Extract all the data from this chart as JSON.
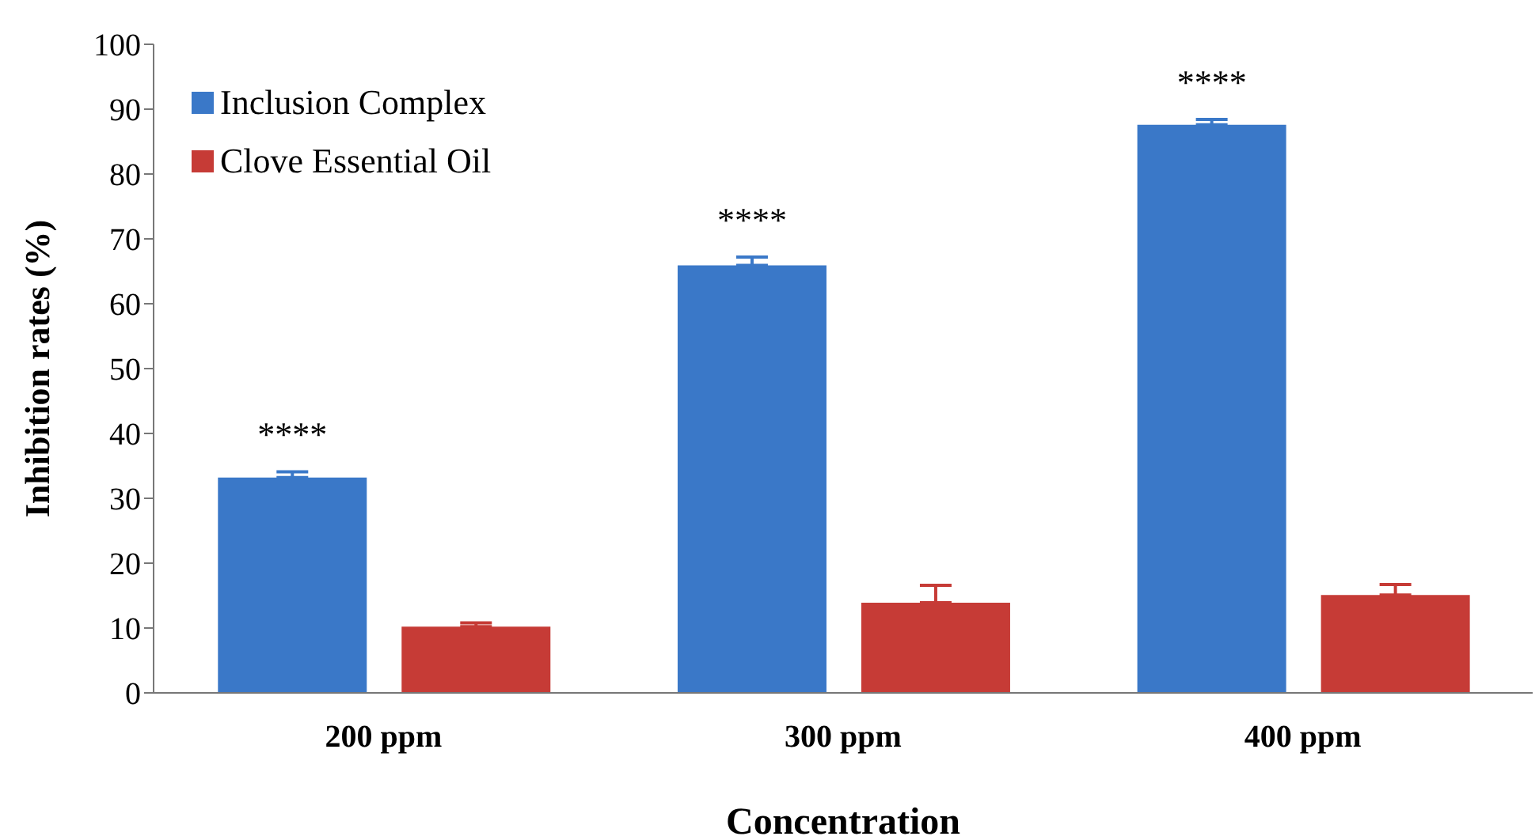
{
  "chart_data": {
    "type": "bar",
    "xlabel": "Concentration",
    "ylabel": "Inhibition rates (%)",
    "categories": [
      "200 ppm",
      "300 ppm",
      "400 ppm"
    ],
    "series": [
      {
        "name": "Inclusion Complex",
        "color": "#3a78c8",
        "values": [
          33.2,
          65.9,
          87.6
        ],
        "errors": [
          [
            33.2,
            34.1
          ],
          [
            65.9,
            67.2
          ],
          [
            87.6,
            88.4
          ]
        ]
      },
      {
        "name": "Clove Essential Oil",
        "color": "#c63b36",
        "values": [
          10.2,
          13.9,
          15.1
        ],
        "errors": [
          [
            10.2,
            10.8
          ],
          [
            13.9,
            16.6
          ],
          [
            15.1,
            16.7
          ]
        ]
      }
    ],
    "ylim": [
      0,
      100
    ],
    "yticks": [
      0,
      10,
      20,
      30,
      40,
      50,
      60,
      70,
      80,
      90,
      100
    ],
    "grid": false,
    "legend": "top left",
    "annotations": [
      "****",
      "****",
      "****"
    ]
  }
}
